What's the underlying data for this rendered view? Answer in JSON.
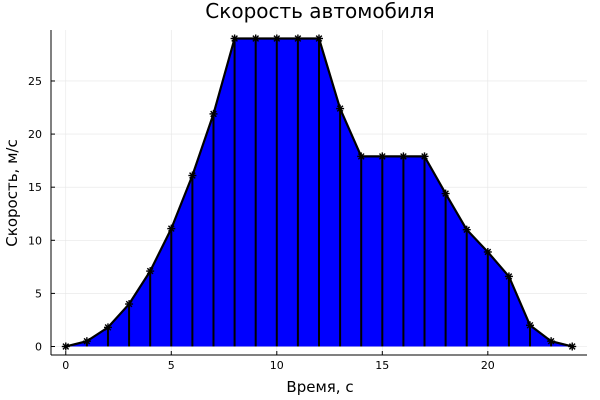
{
  "chart_data": {
    "type": "area",
    "title": "Скорость автомобиля",
    "xlabel": "Время, с",
    "ylabel": "Скорость, м/с",
    "xlim": [
      -0.7,
      24.7
    ],
    "ylim": [
      -0.8,
      29.8
    ],
    "xticks": [
      0,
      5,
      10,
      15,
      20
    ],
    "yticks": [
      0,
      5,
      10,
      15,
      20,
      25
    ],
    "grid": true,
    "fill_color": "#0000ff",
    "line_color": "#000000",
    "marker": "star",
    "x": [
      0,
      1,
      2,
      3,
      4,
      5,
      6,
      7,
      8,
      9,
      10,
      11,
      12,
      13,
      14,
      15,
      16,
      17,
      18,
      19,
      20,
      21,
      22,
      23,
      24
    ],
    "y": [
      0,
      0.5,
      1.8,
      4.0,
      7.1,
      11.1,
      16.1,
      21.9,
      29.0,
      29.0,
      29.0,
      29.0,
      29.0,
      22.4,
      17.9,
      17.9,
      17.9,
      17.9,
      14.4,
      11.0,
      8.9,
      6.6,
      2.0,
      0.5,
      0
    ]
  }
}
